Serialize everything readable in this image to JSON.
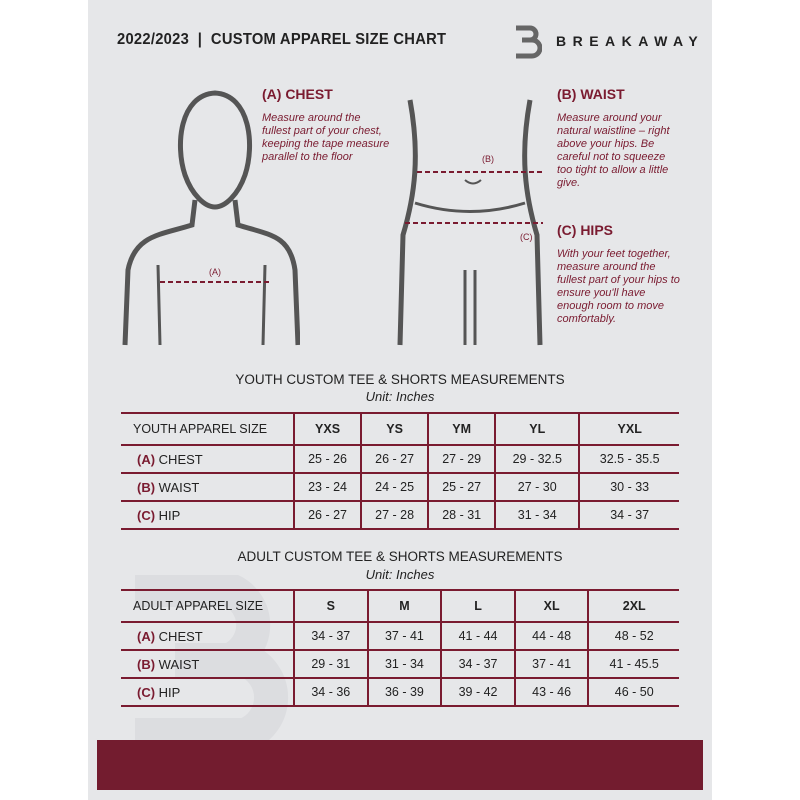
{
  "header": {
    "title": "2022/2023  |  CUSTOM APPAREL SIZE CHART",
    "brand": "BREAKAWAY"
  },
  "guide": {
    "chest": {
      "label": "(A) CHEST",
      "text": "Measure around the fullest part of your chest, keeping the tape measure parallel to the floor",
      "marker": "(A)"
    },
    "waist": {
      "label": "(B) WAIST",
      "text": "Measure around your natural waistline – right above your hips. Be careful not to squeeze too tight to allow a little give.",
      "marker": "(B)"
    },
    "hips": {
      "label": "(C) HIPS",
      "text": "With your feet together, measure around the fullest part of your hips to ensure you'll have enough room to move comfortably.",
      "marker": "(C)"
    }
  },
  "youth": {
    "title": "YOUTH CUSTOM TEE & SHORTS MEASUREMENTS",
    "unit": "Unit: Inches",
    "header": [
      "YOUTH APPAREL SIZE",
      "YXS",
      "YS",
      "YM",
      "YL",
      "YXL"
    ],
    "rows": [
      {
        "code": "(A)",
        "name": "CHEST",
        "values": [
          "25 - 26",
          "26 - 27",
          "27 - 29",
          "29 - 32.5",
          "32.5 - 35.5"
        ]
      },
      {
        "code": "(B)",
        "name": "WAIST",
        "values": [
          "23 - 24",
          "24 - 25",
          "25 - 27",
          "27 - 30",
          "30 - 33"
        ]
      },
      {
        "code": "(C)",
        "name": "HIP",
        "values": [
          "26 - 27",
          "27 - 28",
          "28 - 31",
          "31 - 34",
          "34 - 37"
        ]
      }
    ]
  },
  "adult": {
    "title": "ADULT CUSTOM TEE & SHORTS MEASUREMENTS",
    "unit": "Unit: Inches",
    "header": [
      "ADULT APPAREL SIZE",
      "S",
      "M",
      "L",
      "XL",
      "2XL"
    ],
    "rows": [
      {
        "code": "(A)",
        "name": "CHEST",
        "values": [
          "34 - 37",
          "37 - 41",
          "41 - 44",
          "44 - 48",
          "48 - 52"
        ]
      },
      {
        "code": "(B)",
        "name": "WAIST",
        "values": [
          "29 - 31",
          "31 - 34",
          "34 - 37",
          "37 - 41",
          "41 - 45.5"
        ]
      },
      {
        "code": "(C)",
        "name": "HIP",
        "values": [
          "34 - 36",
          "36 - 39",
          "39 - 42",
          "43 - 46",
          "46 - 50"
        ]
      }
    ]
  },
  "colors": {
    "accent": "#7a1b30",
    "band": "#731c2f",
    "background": "#e6e7e9"
  }
}
